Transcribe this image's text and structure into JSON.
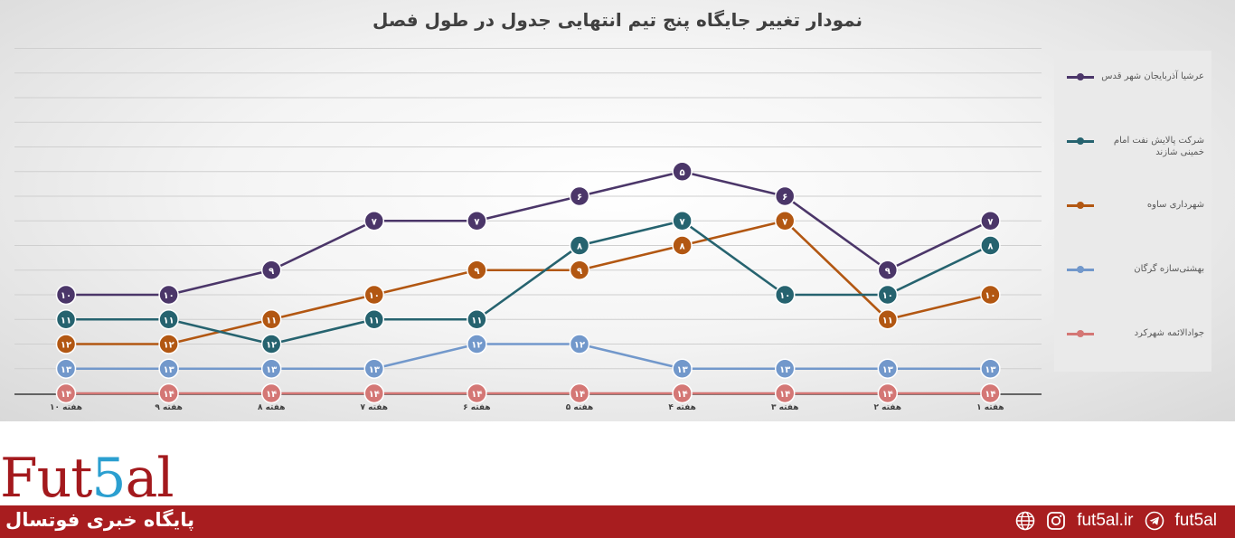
{
  "chart_data": {
    "type": "line",
    "title": "نمودار تغییر جایگاه پنج تیم انتهایی جدول در طول فصل",
    "categories": [
      "هفته ۱۰",
      "هفته ۹",
      "هفته ۸",
      "هفته ۷",
      "هفته ۶",
      "هفته ۵",
      "هفته ۴",
      "هفته ۳",
      "هفته ۲",
      "هفته ۱"
    ],
    "ylim": [
      3.5,
      14
    ],
    "y_reversed": true,
    "grid": true,
    "legend_position": "right",
    "series": [
      {
        "name": "عرشیا آذربایجان شهر قدس",
        "color": "#4b3669",
        "values": [
          10,
          10,
          9,
          7,
          7,
          6,
          5,
          6,
          9,
          7
        ],
        "labels": [
          "۱۰",
          "۱۰",
          "۹",
          "۷",
          "۷",
          "۶",
          "۵",
          "۶",
          "۹",
          "۷"
        ]
      },
      {
        "name": "شرکت پالایش نفت امام خمینی شازند",
        "color": "#26636f",
        "values": [
          11,
          11,
          12,
          11,
          11,
          8,
          7,
          10,
          10,
          8
        ],
        "labels": [
          "۱۱",
          "۱۱",
          "۱۲",
          "۱۱",
          "۱۱",
          "۸",
          "۷",
          "۱۰",
          "۱۰",
          "۸"
        ]
      },
      {
        "name": "شهرداری ساوه",
        "color": "#b25712",
        "values": [
          12,
          12,
          11,
          10,
          9,
          9,
          8,
          7,
          11,
          10
        ],
        "labels": [
          "۱۲",
          "۱۲",
          "۱۱",
          "۱۰",
          "۹",
          "۹",
          "۸",
          "۷",
          "۱۱",
          "۱۰"
        ]
      },
      {
        "name": "بهشتی‌سازه گرگان",
        "color": "#7298cb",
        "values": [
          13,
          13,
          13,
          13,
          12,
          12,
          13,
          13,
          13,
          13
        ],
        "labels": [
          "۱۳",
          "۱۳",
          "۱۳",
          "۱۳",
          "۱۲",
          "۱۲",
          "۱۳",
          "۱۳",
          "۱۳",
          "۱۳"
        ]
      },
      {
        "name": "جوادالائمه شهرکرد",
        "color": "#d47775",
        "values": [
          14,
          14,
          14,
          14,
          14,
          14,
          14,
          14,
          14,
          14
        ],
        "labels": [
          "۱۴",
          "۱۴",
          "۱۴",
          "۱۴",
          "۱۴",
          "۱۴",
          "۱۴",
          "۱۴",
          "۱۴",
          "۱۴"
        ]
      }
    ]
  },
  "footer": {
    "logo_prefix": "Fut",
    "logo_five": "5",
    "logo_suffix": "al",
    "tagline": "پایگاه خبری فوتسال",
    "website": "fut5al.ir",
    "telegram": "fut5al",
    "icons": [
      "globe-icon",
      "instagram-icon",
      "telegram-icon"
    ]
  }
}
